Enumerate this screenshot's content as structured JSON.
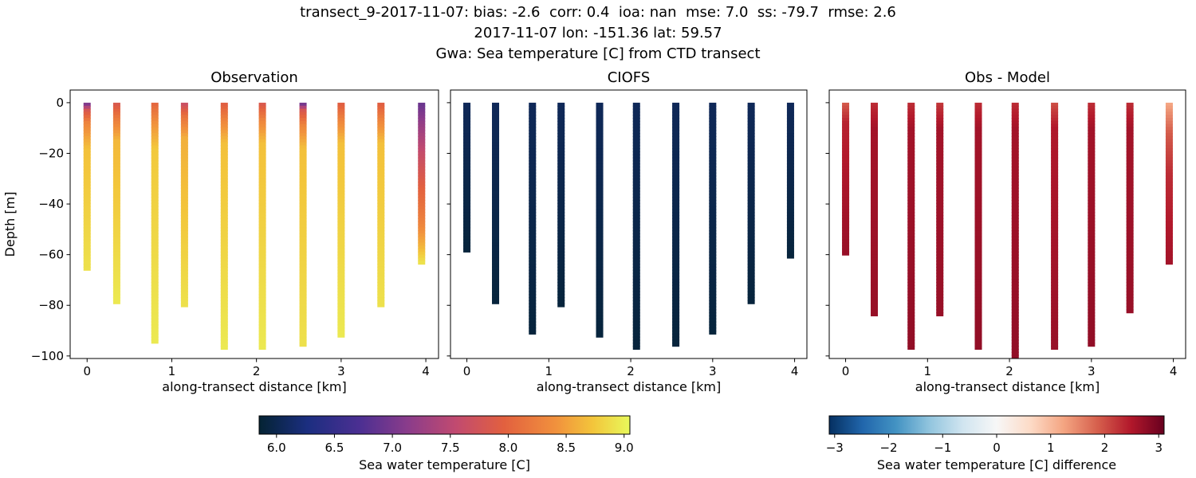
{
  "header": {
    "line1": "transect_9-2017-11-07: bias: -2.6  corr: 0.4  ioa: nan  mse: 7.0  ss: -79.7  rmse: 2.6",
    "line2": "2017-11-07 lon: -151.36 lat: 59.57",
    "line3": "Gwa: Sea temperature [C] from CTD transect"
  },
  "chart_data": {
    "type": "scatter",
    "shared": {
      "xlabel": "along-transect distance [km]",
      "ylabel": "Depth [m]",
      "xlim": [
        -0.2,
        4.15
      ],
      "ylim_top": 5,
      "ylim_bottom": -101,
      "xticks": [
        0,
        1,
        2,
        3,
        4
      ],
      "xtick_labels": [
        "0",
        "1",
        "2",
        "3",
        "4"
      ],
      "yticks": [
        0,
        -20,
        -40,
        -60,
        -80,
        -100
      ],
      "ytick_labels": [
        "0",
        "−20",
        "−40",
        "−60",
        "−80",
        "−100"
      ]
    },
    "colormaps": {
      "thermal": [
        [
          0.0,
          "#042333"
        ],
        [
          0.13,
          "#1b2e80"
        ],
        [
          0.27,
          "#4b2f92"
        ],
        [
          0.4,
          "#8a3c8b"
        ],
        [
          0.53,
          "#c14a70"
        ],
        [
          0.66,
          "#e2603f"
        ],
        [
          0.8,
          "#f1913d"
        ],
        [
          0.9,
          "#f3c53b"
        ],
        [
          1.0,
          "#e8f95b"
        ]
      ],
      "diverging": [
        [
          0.0,
          "#053061"
        ],
        [
          0.1,
          "#2166ac"
        ],
        [
          0.2,
          "#4393c3"
        ],
        [
          0.3,
          "#92c5de"
        ],
        [
          0.4,
          "#d1e5f0"
        ],
        [
          0.5,
          "#f7f7f7"
        ],
        [
          0.6,
          "#fddbc7"
        ],
        [
          0.7,
          "#f4a582"
        ],
        [
          0.8,
          "#d6604d"
        ],
        [
          0.9,
          "#b2182b"
        ],
        [
          1.0,
          "#67001f"
        ]
      ]
    },
    "panels": [
      {
        "title": "Observation",
        "colormap": "thermal",
        "vmin": 5.85,
        "vmax": 9.05,
        "profiles": [
          {
            "x": 0.0,
            "points": [
              [
                0,
                6.9
              ],
              [
                -3,
                7.8
              ],
              [
                -8,
                8.3
              ],
              [
                -18,
                8.7
              ],
              [
                -66,
                8.9
              ]
            ]
          },
          {
            "x": 0.35,
            "points": [
              [
                0,
                7.8
              ],
              [
                -6,
                8.2
              ],
              [
                -15,
                8.65
              ],
              [
                -79,
                8.95
              ]
            ]
          },
          {
            "x": 0.8,
            "points": [
              [
                0,
                8.0
              ],
              [
                -8,
                8.4
              ],
              [
                -18,
                8.75
              ],
              [
                -94,
                8.95
              ]
            ]
          },
          {
            "x": 1.15,
            "points": [
              [
                0,
                7.6
              ],
              [
                -5,
                8.1
              ],
              [
                -14,
                8.6
              ],
              [
                -80,
                8.9
              ]
            ]
          },
          {
            "x": 1.62,
            "points": [
              [
                0,
                7.9
              ],
              [
                -7,
                8.3
              ],
              [
                -16,
                8.7
              ],
              [
                -97,
                8.95
              ]
            ]
          },
          {
            "x": 2.07,
            "points": [
              [
                0,
                7.8
              ],
              [
                -7,
                8.3
              ],
              [
                -16,
                8.7
              ],
              [
                -97,
                8.95
              ]
            ]
          },
          {
            "x": 2.55,
            "points": [
              [
                0,
                6.8
              ],
              [
                -3,
                7.8
              ],
              [
                -9,
                8.3
              ],
              [
                -18,
                8.7
              ],
              [
                -96,
                8.9
              ]
            ]
          },
          {
            "x": 3.0,
            "points": [
              [
                0,
                7.9
              ],
              [
                -7,
                8.3
              ],
              [
                -16,
                8.7
              ],
              [
                -92,
                8.95
              ]
            ]
          },
          {
            "x": 3.47,
            "points": [
              [
                0,
                7.9
              ],
              [
                -7,
                8.3
              ],
              [
                -16,
                8.7
              ],
              [
                -80,
                8.9
              ]
            ]
          },
          {
            "x": 3.95,
            "points": [
              [
                0,
                6.9
              ],
              [
                -8,
                7.2
              ],
              [
                -20,
                7.6
              ],
              [
                -35,
                8.0
              ],
              [
                -48,
                8.3
              ],
              [
                -56,
                8.6
              ],
              [
                -63,
                8.9
              ]
            ]
          }
        ]
      },
      {
        "title": "CIOFS",
        "colormap": "thermal",
        "vmin": 5.85,
        "vmax": 9.05,
        "profiles": [
          {
            "x": 0.0,
            "points": [
              [
                0,
                6.05
              ],
              [
                -58,
                5.9
              ]
            ]
          },
          {
            "x": 0.35,
            "points": [
              [
                0,
                6.05
              ],
              [
                -79,
                5.9
              ]
            ]
          },
          {
            "x": 0.8,
            "points": [
              [
                0,
                6.05
              ],
              [
                -91,
                5.9
              ]
            ]
          },
          {
            "x": 1.15,
            "points": [
              [
                0,
                6.05
              ],
              [
                -80,
                5.9
              ]
            ]
          },
          {
            "x": 1.62,
            "points": [
              [
                0,
                6.05
              ],
              [
                -92,
                5.9
              ]
            ]
          },
          {
            "x": 2.07,
            "points": [
              [
                0,
                6.05
              ],
              [
                -97,
                5.9
              ]
            ]
          },
          {
            "x": 2.55,
            "points": [
              [
                0,
                6.05
              ],
              [
                -95,
                5.9
              ]
            ]
          },
          {
            "x": 3.0,
            "points": [
              [
                0,
                6.05
              ],
              [
                -91,
                5.9
              ]
            ]
          },
          {
            "x": 3.47,
            "points": [
              [
                0,
                6.05
              ],
              [
                -79,
                5.9
              ]
            ]
          },
          {
            "x": 3.95,
            "points": [
              [
                0,
                6.05
              ],
              [
                -61,
                5.9
              ]
            ]
          }
        ]
      },
      {
        "title": "Obs - Model",
        "colormap": "diverging",
        "vmin": -3.1,
        "vmax": 3.1,
        "profiles": [
          {
            "x": 0.0,
            "points": [
              [
                0,
                1.9
              ],
              [
                -8,
                2.4
              ],
              [
                -59,
                2.7
              ]
            ]
          },
          {
            "x": 0.35,
            "points": [
              [
                0,
                2.3
              ],
              [
                -10,
                2.6
              ],
              [
                -84,
                2.7
              ]
            ]
          },
          {
            "x": 0.8,
            "points": [
              [
                0,
                2.3
              ],
              [
                -10,
                2.6
              ],
              [
                -97,
                2.75
              ]
            ]
          },
          {
            "x": 1.15,
            "points": [
              [
                0,
                2.2
              ],
              [
                -10,
                2.6
              ],
              [
                -83,
                2.7
              ]
            ]
          },
          {
            "x": 1.62,
            "points": [
              [
                0,
                2.3
              ],
              [
                -10,
                2.6
              ],
              [
                -97,
                2.75
              ]
            ]
          },
          {
            "x": 2.07,
            "points": [
              [
                0,
                2.3
              ],
              [
                -10,
                2.6
              ],
              [
                -100,
                2.75
              ]
            ]
          },
          {
            "x": 2.55,
            "points": [
              [
                0,
                2.0
              ],
              [
                -10,
                2.5
              ],
              [
                -97,
                2.7
              ]
            ]
          },
          {
            "x": 3.0,
            "points": [
              [
                0,
                2.3
              ],
              [
                -10,
                2.6
              ],
              [
                -96,
                2.75
              ]
            ]
          },
          {
            "x": 3.47,
            "points": [
              [
                0,
                2.3
              ],
              [
                -10,
                2.6
              ],
              [
                -82,
                2.7
              ]
            ]
          },
          {
            "x": 3.95,
            "points": [
              [
                0,
                1.2
              ],
              [
                -12,
                1.9
              ],
              [
                -28,
                2.3
              ],
              [
                -50,
                2.5
              ],
              [
                -63,
                2.6
              ]
            ]
          }
        ]
      }
    ],
    "colorbars": [
      {
        "colormap": "thermal",
        "vmin": 5.85,
        "vmax": 9.05,
        "ticks": [
          6.0,
          6.5,
          7.0,
          7.5,
          8.0,
          8.5,
          9.0
        ],
        "tick_labels": [
          "6.0",
          "6.5",
          "7.0",
          "7.5",
          "8.0",
          "8.5",
          "9.0"
        ],
        "label": "Sea water temperature [C]"
      },
      {
        "colormap": "diverging",
        "vmin": -3.1,
        "vmax": 3.1,
        "ticks": [
          -3,
          -2,
          -1,
          0,
          1,
          2,
          3
        ],
        "tick_labels": [
          "−3",
          "−2",
          "−1",
          "0",
          "1",
          "2",
          "3"
        ],
        "label": "Sea water temperature [C] difference"
      }
    ]
  }
}
